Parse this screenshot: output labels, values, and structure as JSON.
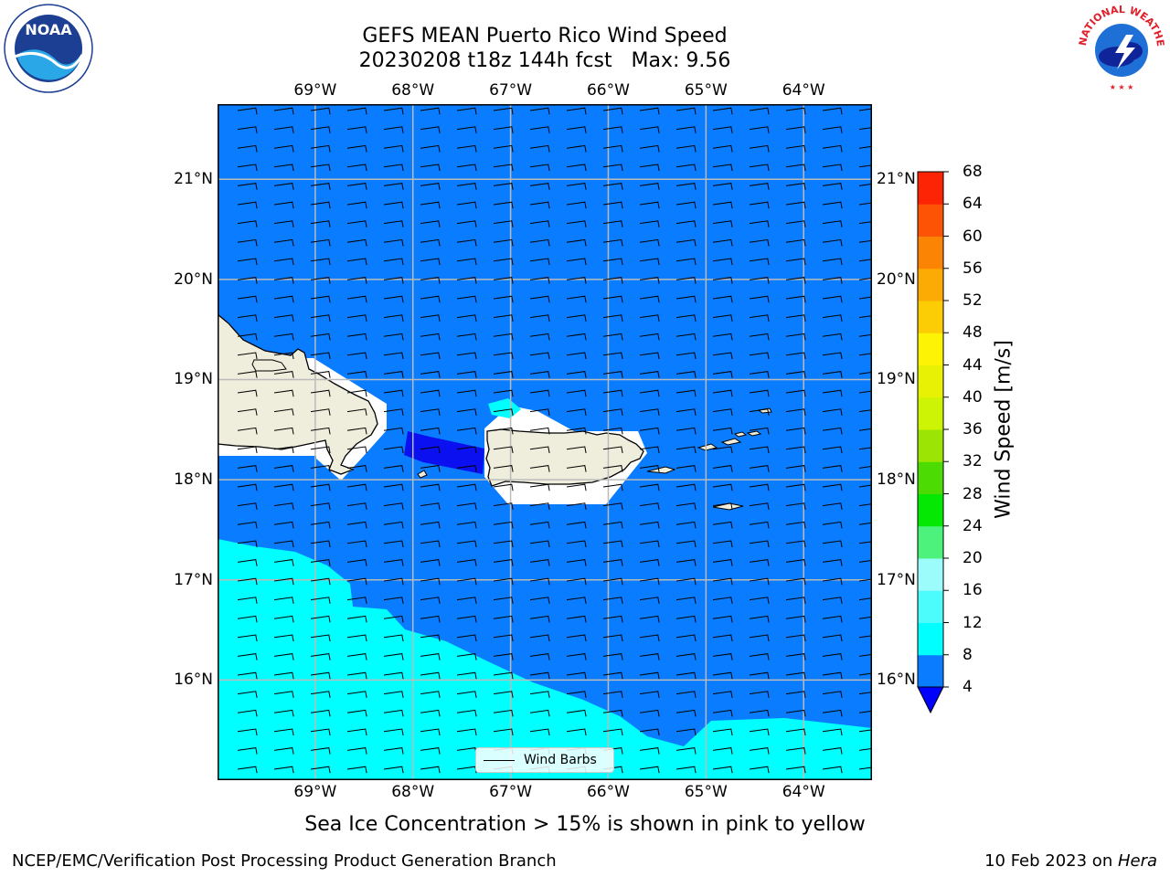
{
  "title_line1": "GEFS MEAN Puerto Rico Wind Speed",
  "title_line2": "20230208 t18z 144h fcst   Max: 9.56",
  "longitude_labels": [
    "69°W",
    "68°W",
    "67°W",
    "66°W",
    "65°W",
    "64°W"
  ],
  "latitude_labels": [
    "21°N",
    "20°N",
    "19°N",
    "18°N",
    "17°N",
    "16°N"
  ],
  "map": {
    "extent": {
      "lon_min": -70.0,
      "lon_max": -63.3,
      "lat_min": 15.0,
      "lat_max": 21.75
    },
    "gridlines_lon": [
      -69,
      -68,
      -67,
      -66,
      -65,
      -64
    ],
    "gridlines_lat": [
      21,
      20,
      19,
      18,
      17,
      16
    ],
    "fill_colors": {
      "speed_4_8": "#0a7cff",
      "speed_8_12": "#00ffff",
      "speed_below_4": "#0a10f0",
      "land": "#efeddc",
      "masked": "#ffffff"
    }
  },
  "colorbar": {
    "label": "Wind Speed [m/s]",
    "ticks": [
      "4",
      "8",
      "12",
      "16",
      "20",
      "24",
      "28",
      "32",
      "36",
      "40",
      "44",
      "48",
      "52",
      "56",
      "60",
      "64",
      "68"
    ],
    "colors": [
      "#0a7cff",
      "#00ffff",
      "#4cfcfc",
      "#9cfcfc",
      "#4cf27c",
      "#04e804",
      "#4cdc04",
      "#9ce404",
      "#ccf404",
      "#e8f004",
      "#fcf404",
      "#fccc04",
      "#fcaa04",
      "#fc8404",
      "#fc5404",
      "#fc2404"
    ],
    "under_color": "#0000ff"
  },
  "legend": {
    "label": "Wind Barbs"
  },
  "caption": "Sea Ice Concentration > 15% is shown in pink to yellow",
  "footer_left": "NCEP/EMC/Verification Post Processing Product Generation Branch",
  "footer_right_text": "10 Feb 2023 on ",
  "footer_right_host": "Hera",
  "logos": {
    "left": "noaa-logo",
    "right": "national-weather-service-logo"
  }
}
